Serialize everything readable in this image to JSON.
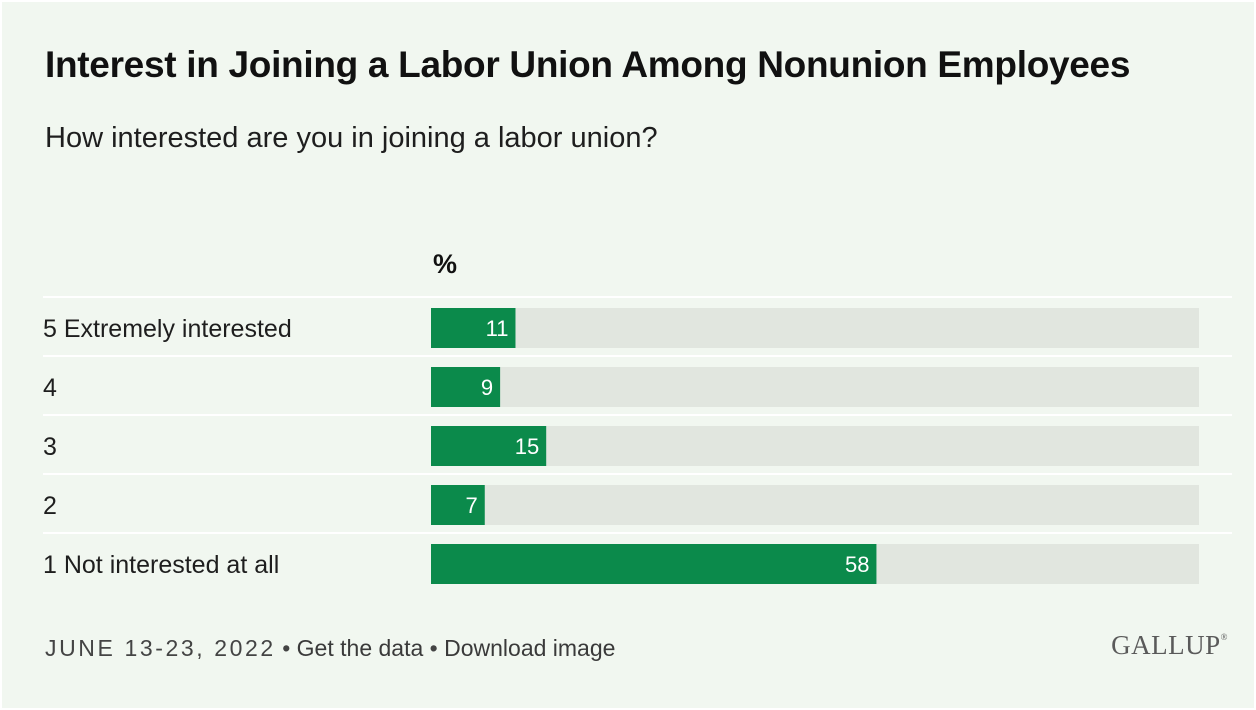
{
  "title": "Interest in Joining a Labor Union Among Nonunion Employees",
  "subtitle": "How interested are you in joining a labor union?",
  "footer": {
    "date": "JUNE 13-23, 2022",
    "separator": "•",
    "get_data": "Get the data",
    "download": "Download image"
  },
  "logo": "GALLUP",
  "colors": {
    "bar": "#0b8a4b",
    "track": "#e1e6df",
    "background": "#f1f7f0",
    "gridline": "#ffffff"
  },
  "chart_data": {
    "type": "bar",
    "orientation": "horizontal",
    "unit_label": "%",
    "categories": [
      "5 Extremely interested",
      "4",
      "3",
      "2",
      "1 Not interested at all"
    ],
    "values": [
      11,
      9,
      15,
      7,
      58
    ],
    "xlim": [
      0,
      100
    ],
    "grid": false,
    "legend": "none"
  }
}
